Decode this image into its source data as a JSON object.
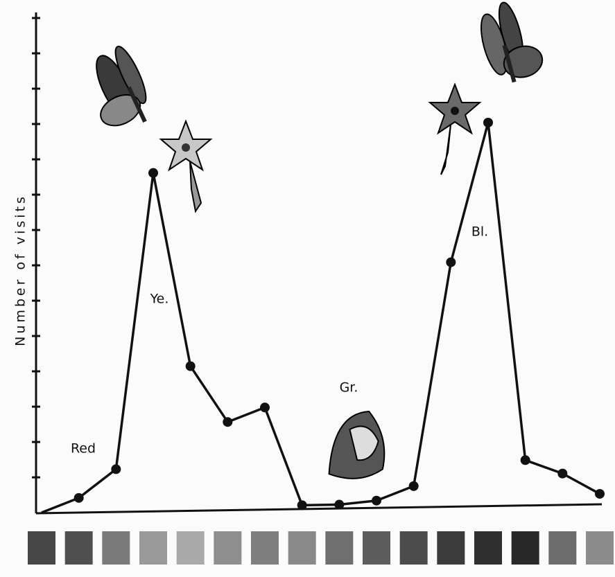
{
  "chart_data": {
    "type": "line",
    "y_label": "Number of visits",
    "categories": [
      null,
      null,
      null,
      null,
      null,
      null,
      null,
      null,
      null,
      null,
      null,
      null,
      null,
      null,
      null,
      null
    ],
    "category_colors": [
      "#474747",
      "#4f4f4f",
      "#7a7a7a",
      "#9a9a9a",
      "#a9a9a9",
      "#8e8e8e",
      "#7f7f7f",
      "#898989",
      "#6f6f6f",
      "#5d5d5d",
      "#4c4c4c",
      "#3b3b3b",
      "#2f2f2f",
      "#292929",
      "#6c6c6c",
      "#8c8c8c"
    ],
    "values": [
      0,
      0.4,
      1.2,
      9.6,
      4.1,
      2.5,
      2.9,
      0.1,
      0.1,
      0.2,
      0.6,
      7.0,
      11.0,
      1.3,
      0.9,
      0.3
    ],
    "color": "#111111",
    "ylim": [
      0,
      14
    ],
    "yticks": [
      1,
      2,
      3,
      4,
      5,
      6,
      7,
      8,
      9,
      10,
      11,
      12,
      13,
      14
    ],
    "annotations": [
      "Red",
      "Ye.",
      "Gr.",
      "Bl."
    ]
  }
}
